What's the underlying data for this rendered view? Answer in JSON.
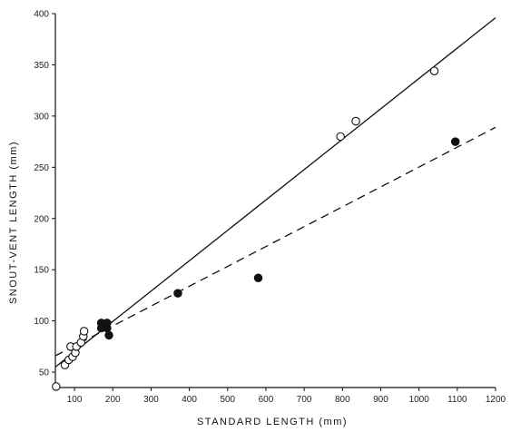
{
  "chart_data": {
    "type": "scatter",
    "xlabel": "STANDARD LENGTH (mm)",
    "ylabel": "SNOUT-VENT LENGTH (mm)",
    "xlim": [
      50,
      1200
    ],
    "ylim": [
      35,
      400
    ],
    "xticks": [
      100,
      200,
      300,
      400,
      500,
      600,
      700,
      800,
      900,
      1000,
      1100,
      1200
    ],
    "yticks": [
      50,
      100,
      150,
      200,
      250,
      300,
      350,
      400
    ],
    "grid": false,
    "series": [
      {
        "marker": "open-circle",
        "points": [
          {
            "x": 52,
            "y": 36
          },
          {
            "x": 75,
            "y": 57
          },
          {
            "x": 85,
            "y": 62
          },
          {
            "x": 90,
            "y": 75
          },
          {
            "x": 95,
            "y": 65
          },
          {
            "x": 102,
            "y": 69
          },
          {
            "x": 105,
            "y": 75
          },
          {
            "x": 117,
            "y": 79
          },
          {
            "x": 123,
            "y": 85
          },
          {
            "x": 125,
            "y": 90
          },
          {
            "x": 795,
            "y": 280
          },
          {
            "x": 835,
            "y": 295
          },
          {
            "x": 1040,
            "y": 344
          }
        ]
      },
      {
        "marker": "filled-circle",
        "points": [
          {
            "x": 170,
            "y": 93
          },
          {
            "x": 170,
            "y": 98
          },
          {
            "x": 185,
            "y": 93
          },
          {
            "x": 185,
            "y": 98
          },
          {
            "x": 190,
            "y": 86
          },
          {
            "x": 370,
            "y": 127
          },
          {
            "x": 580,
            "y": 142
          },
          {
            "x": 1095,
            "y": 275
          }
        ]
      }
    ],
    "lines": [
      {
        "style": "solid",
        "from": [
          50,
          55
        ],
        "to": [
          1200,
          396
        ]
      },
      {
        "style": "dashed",
        "from": [
          50,
          66
        ],
        "to": [
          1200,
          289
        ]
      }
    ]
  }
}
